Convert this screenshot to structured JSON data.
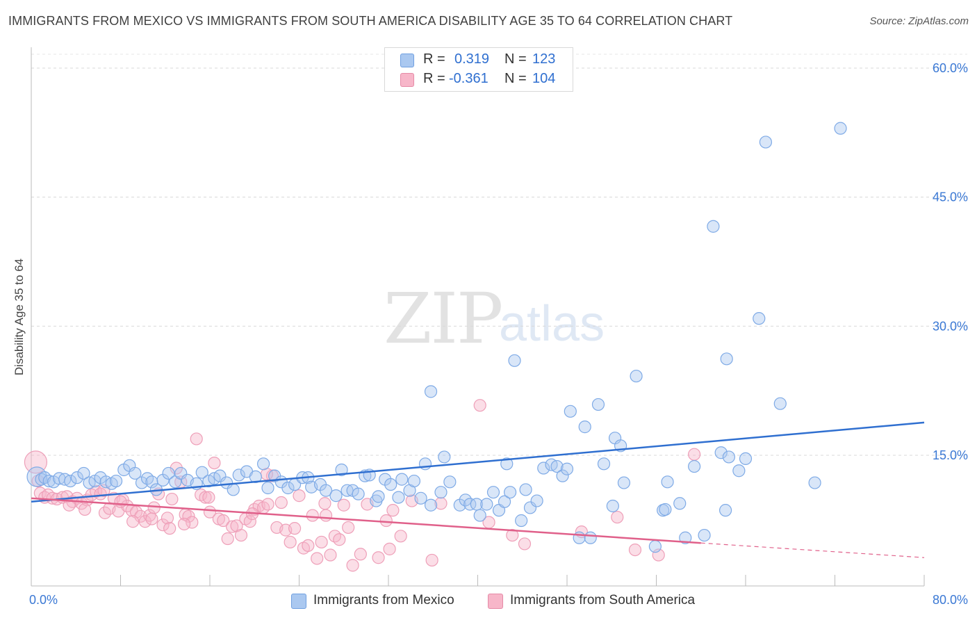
{
  "header": {
    "title": "IMMIGRANTS FROM MEXICO VS IMMIGRANTS FROM SOUTH AMERICA DISABILITY AGE 35 TO 64 CORRELATION CHART",
    "source": "Source: ZipAtlas.com"
  },
  "watermark": {
    "zip": "ZIP",
    "atlas": "atlas"
  },
  "stats": [
    {
      "r_label": "R =",
      "r": "0.319",
      "n_label": "N =",
      "n": "123",
      "color": "#aac8f0"
    },
    {
      "r_label": "R =",
      "r": "-0.361",
      "n_label": "N =",
      "n": "104",
      "color": "#f7b6c9"
    }
  ],
  "legend": [
    {
      "label": "Immigrants from Mexico",
      "color": "#aac8f0"
    },
    {
      "label": "Immigrants from South America",
      "color": "#f7b6c9"
    }
  ],
  "chart_data": {
    "type": "scatter",
    "title": "IMMIGRANTS FROM MEXICO VS IMMIGRANTS FROM SOUTH AMERICA DISABILITY AGE 35 TO 64 CORRELATION CHART",
    "xlabel": "",
    "ylabel": "Disability Age 35 to 64",
    "xlim": [
      0,
      80
    ],
    "ylim": [
      0,
      64
    ],
    "x_tick_labels": [
      "0.0%",
      "80.0%"
    ],
    "y_ticks": [
      15,
      30,
      45,
      60
    ],
    "y_tick_labels": [
      "15.0%",
      "30.0%",
      "45.0%",
      "60.0%"
    ],
    "grid": "horizontal dashed",
    "colors": {
      "mexico": "#2f6fd0",
      "south_america": "#e0608a",
      "tick_text": "#3a78d4"
    },
    "series": [
      {
        "name": "Immigrants from Mexico",
        "color": "#2f6fd0",
        "trend": {
          "x": [
            0,
            80
          ],
          "y": [
            9.6,
            18.8
          ],
          "dashed_from": null
        },
        "points": [
          [
            0.5,
            12.5
          ],
          [
            0.9,
            12.2
          ],
          [
            1.2,
            12.4
          ],
          [
            1.6,
            12.0
          ],
          [
            2.0,
            11.9
          ],
          [
            2.5,
            12.3
          ],
          [
            3.0,
            12.2
          ],
          [
            3.5,
            12.0
          ],
          [
            4.1,
            12.4
          ],
          [
            4.7,
            12.9
          ],
          [
            5.2,
            11.8
          ],
          [
            5.7,
            12.0
          ],
          [
            6.2,
            12.4
          ],
          [
            6.7,
            11.9
          ],
          [
            7.2,
            11.7
          ],
          [
            7.6,
            12.0
          ],
          [
            8.3,
            13.3
          ],
          [
            8.8,
            13.8
          ],
          [
            9.3,
            12.9
          ],
          [
            9.9,
            11.8
          ],
          [
            10.4,
            12.3
          ],
          [
            10.8,
            11.9
          ],
          [
            11.2,
            11.0
          ],
          [
            11.8,
            12.1
          ],
          [
            12.3,
            12.9
          ],
          [
            12.9,
            11.9
          ],
          [
            13.4,
            12.9
          ],
          [
            14.0,
            12.1
          ],
          [
            14.8,
            11.7
          ],
          [
            15.3,
            13.0
          ],
          [
            15.9,
            12.0
          ],
          [
            16.4,
            12.3
          ],
          [
            16.9,
            12.6
          ],
          [
            17.5,
            11.8
          ],
          [
            18.1,
            11.0
          ],
          [
            18.6,
            12.7
          ],
          [
            19.3,
            13.1
          ],
          [
            20.1,
            12.5
          ],
          [
            20.8,
            14.0
          ],
          [
            21.2,
            11.2
          ],
          [
            21.8,
            12.6
          ],
          [
            22.4,
            11.9
          ],
          [
            23.0,
            11.2
          ],
          [
            23.6,
            11.6
          ],
          [
            24.3,
            12.4
          ],
          [
            24.8,
            12.4
          ],
          [
            25.1,
            11.3
          ],
          [
            25.9,
            11.6
          ],
          [
            26.4,
            10.9
          ],
          [
            27.3,
            10.3
          ],
          [
            27.8,
            13.3
          ],
          [
            28.3,
            10.9
          ],
          [
            28.8,
            10.9
          ],
          [
            29.3,
            10.5
          ],
          [
            29.9,
            12.6
          ],
          [
            30.3,
            12.7
          ],
          [
            30.9,
            9.7
          ],
          [
            31.1,
            10.2
          ],
          [
            31.7,
            12.2
          ],
          [
            32.2,
            11.6
          ],
          [
            32.9,
            10.1
          ],
          [
            33.2,
            12.2
          ],
          [
            33.9,
            10.9
          ],
          [
            34.3,
            12.0
          ],
          [
            34.9,
            10.0
          ],
          [
            35.3,
            14.0
          ],
          [
            35.8,
            9.2
          ],
          [
            35.8,
            22.4
          ],
          [
            36.7,
            10.7
          ],
          [
            37.0,
            14.8
          ],
          [
            37.5,
            11.9
          ],
          [
            38.4,
            9.2
          ],
          [
            38.9,
            9.8
          ],
          [
            39.3,
            9.3
          ],
          [
            39.9,
            9.3
          ],
          [
            40.2,
            8.0
          ],
          [
            40.8,
            9.3
          ],
          [
            41.4,
            10.7
          ],
          [
            41.9,
            8.6
          ],
          [
            42.4,
            9.6
          ],
          [
            42.6,
            14.0
          ],
          [
            42.9,
            10.7
          ],
          [
            43.3,
            26.0
          ],
          [
            43.9,
            7.4
          ],
          [
            44.3,
            11.0
          ],
          [
            44.7,
            8.9
          ],
          [
            45.3,
            9.7
          ],
          [
            45.9,
            13.5
          ],
          [
            46.6,
            13.9
          ],
          [
            47.1,
            13.7
          ],
          [
            47.6,
            12.6
          ],
          [
            48.3,
            20.1
          ],
          [
            49.1,
            5.4
          ],
          [
            49.6,
            18.3
          ],
          [
            50.1,
            5.4
          ],
          [
            50.8,
            20.9
          ],
          [
            51.3,
            14.0
          ],
          [
            52.1,
            9.1
          ],
          [
            52.3,
            17.0
          ],
          [
            52.8,
            16.1
          ],
          [
            53.1,
            11.8
          ],
          [
            54.2,
            24.2
          ],
          [
            55.9,
            4.4
          ],
          [
            56.6,
            8.6
          ],
          [
            56.8,
            8.7
          ],
          [
            57.0,
            11.9
          ],
          [
            58.1,
            9.4
          ],
          [
            58.6,
            5.4
          ],
          [
            59.4,
            13.7
          ],
          [
            60.3,
            5.7
          ],
          [
            61.1,
            41.6
          ],
          [
            61.8,
            15.3
          ],
          [
            62.2,
            8.6
          ],
          [
            62.3,
            26.2
          ],
          [
            63.4,
            13.2
          ],
          [
            64.0,
            14.6
          ],
          [
            65.2,
            30.9
          ],
          [
            65.8,
            51.4
          ],
          [
            67.1,
            21.0
          ],
          [
            70.2,
            11.8
          ],
          [
            72.5,
            53.0
          ],
          [
            62.5,
            14.8
          ],
          [
            48.0,
            13.4
          ]
        ]
      },
      {
        "name": "Immigrants from South America",
        "color": "#e0608a",
        "trend": {
          "x": [
            0,
            60
          ],
          "y": [
            10.0,
            4.8
          ],
          "dashed_to": [
            80,
            3.1
          ]
        },
        "points": [
          [
            0.4,
            14.2
          ],
          [
            0.6,
            12.0
          ],
          [
            0.8,
            10.6
          ],
          [
            1.2,
            10.1
          ],
          [
            1.5,
            10.4
          ],
          [
            1.9,
            10.0
          ],
          [
            2.3,
            9.9
          ],
          [
            2.8,
            10.1
          ],
          [
            3.2,
            10.2
          ],
          [
            3.7,
            9.6
          ],
          [
            4.1,
            10.0
          ],
          [
            4.5,
            9.4
          ],
          [
            5.0,
            9.8
          ],
          [
            5.4,
            10.4
          ],
          [
            5.8,
            10.8
          ],
          [
            6.2,
            10.5
          ],
          [
            6.6,
            8.3
          ],
          [
            7.0,
            8.8
          ],
          [
            7.4,
            10.0
          ],
          [
            7.8,
            8.5
          ],
          [
            8.2,
            9.8
          ],
          [
            8.6,
            9.1
          ],
          [
            9.0,
            8.6
          ],
          [
            9.4,
            8.4
          ],
          [
            9.8,
            7.9
          ],
          [
            10.2,
            7.3
          ],
          [
            10.6,
            8.0
          ],
          [
            11.0,
            8.9
          ],
          [
            11.4,
            10.5
          ],
          [
            11.8,
            6.9
          ],
          [
            12.2,
            7.7
          ],
          [
            12.6,
            9.9
          ],
          [
            13.0,
            13.5
          ],
          [
            13.4,
            11.9
          ],
          [
            13.8,
            8.1
          ],
          [
            14.1,
            7.9
          ],
          [
            14.4,
            7.2
          ],
          [
            14.8,
            16.9
          ],
          [
            15.2,
            10.4
          ],
          [
            15.6,
            10.1
          ],
          [
            16.0,
            8.4
          ],
          [
            16.4,
            14.1
          ],
          [
            16.8,
            7.6
          ],
          [
            17.2,
            7.4
          ],
          [
            17.6,
            5.3
          ],
          [
            18.0,
            6.7
          ],
          [
            18.4,
            6.8
          ],
          [
            18.8,
            5.7
          ],
          [
            19.2,
            7.6
          ],
          [
            19.6,
            7.3
          ],
          [
            20.0,
            8.7
          ],
          [
            20.4,
            9.1
          ],
          [
            20.8,
            8.9
          ],
          [
            21.2,
            9.3
          ],
          [
            21.6,
            12.6
          ],
          [
            22.0,
            6.6
          ],
          [
            22.4,
            9.5
          ],
          [
            22.8,
            6.3
          ],
          [
            23.2,
            4.9
          ],
          [
            23.6,
            6.5
          ],
          [
            24.0,
            10.3
          ],
          [
            24.4,
            4.2
          ],
          [
            24.8,
            4.5
          ],
          [
            25.2,
            8.0
          ],
          [
            25.6,
            3.0
          ],
          [
            26.0,
            4.9
          ],
          [
            26.4,
            8.0
          ],
          [
            26.8,
            3.4
          ],
          [
            27.2,
            5.6
          ],
          [
            27.6,
            5.2
          ],
          [
            28.0,
            9.2
          ],
          [
            28.4,
            6.6
          ],
          [
            28.8,
            2.2
          ],
          [
            29.5,
            3.5
          ],
          [
            30.1,
            9.3
          ],
          [
            31.1,
            3.1
          ],
          [
            31.8,
            7.4
          ],
          [
            32.1,
            4.1
          ],
          [
            32.4,
            8.6
          ],
          [
            33.1,
            5.6
          ],
          [
            34.1,
            9.7
          ],
          [
            35.9,
            2.8
          ],
          [
            36.7,
            9.4
          ],
          [
            40.2,
            20.8
          ],
          [
            41.0,
            7.2
          ],
          [
            43.1,
            5.7
          ],
          [
            44.2,
            4.7
          ],
          [
            49.3,
            6.1
          ],
          [
            52.5,
            7.8
          ],
          [
            54.1,
            4.0
          ],
          [
            56.2,
            3.4
          ],
          [
            59.4,
            15.1
          ],
          [
            26.3,
            9.4
          ],
          [
            19.8,
            8.2
          ],
          [
            15.9,
            10.1
          ],
          [
            13.7,
            7.0
          ],
          [
            12.4,
            6.5
          ],
          [
            10.8,
            7.6
          ],
          [
            9.1,
            7.3
          ],
          [
            8.0,
            9.6
          ],
          [
            6.5,
            10.9
          ],
          [
            4.8,
            8.7
          ],
          [
            3.4,
            9.2
          ],
          [
            21.1,
            12.8
          ]
        ]
      }
    ]
  }
}
